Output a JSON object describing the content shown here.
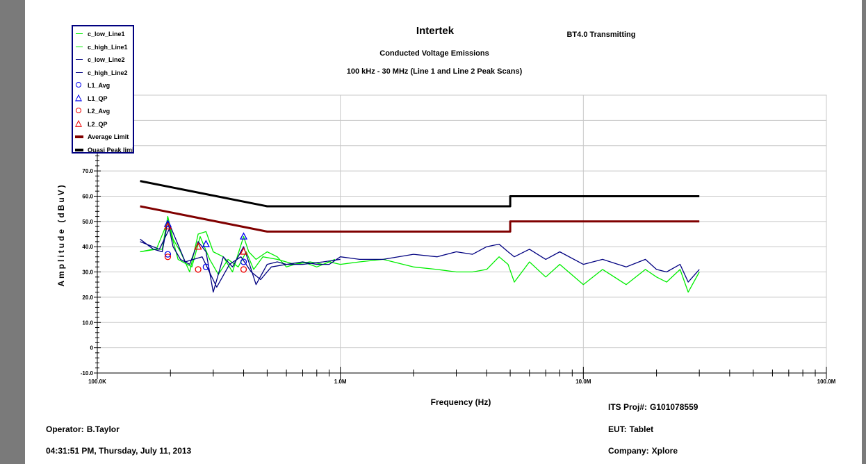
{
  "chart_data": {
    "type": "line",
    "title": "Intertek",
    "subtitle": "Conducted Voltage Emissions",
    "subtitle2": "100 kHz - 30 MHz (Line 1 and Line 2 Peak Scans)",
    "top_right_label": "BT4.0 Transmitting",
    "xlabel": "Frequency (Hz)",
    "ylabel": "Amplitude (dBuV)",
    "x_scale": "log",
    "xlim": [
      100000,
      100000000
    ],
    "ylim": [
      -10,
      100
    ],
    "x_tick_labels": [
      {
        "value": 100000,
        "label": "100.0K"
      },
      {
        "value": 1000000,
        "label": "1.0M"
      },
      {
        "value": 10000000,
        "label": "10.0M"
      },
      {
        "value": 100000000,
        "label": "100.0M"
      }
    ],
    "y_ticks": [
      -10,
      0,
      10,
      20,
      30,
      40,
      50,
      60,
      70
    ],
    "y_tick_labels": [
      "-10.0",
      "0",
      "10.0",
      "20.0",
      "30.0",
      "40.0",
      "50.0",
      "60.0",
      "70.0"
    ],
    "grid": true,
    "legend_position": "top-left",
    "colors": {
      "green": "#00ee00",
      "navy": "#000080",
      "red": "#ee0000",
      "maroon": "#800000",
      "black": "#000000",
      "blue": "#0000ee"
    },
    "series": [
      {
        "name": "c_low_Line1",
        "kind": "line",
        "color": "#00ee00",
        "x": [
          150000,
          170000,
          185000,
          195000,
          205000,
          220000,
          240000,
          260000,
          280000,
          300000,
          330000,
          360000,
          400000,
          420000,
          450000,
          500000,
          550000,
          600000,
          700000,
          800000,
          900000,
          1000000,
          1200000,
          1500000,
          2000000,
          2500000,
          3000000,
          3500000,
          4000000,
          4500000,
          4900000,
          5200000,
          6000000,
          7000000,
          8000000,
          10000000,
          12000000,
          15000000,
          18000000,
          20000000,
          22000000,
          25000000,
          27000000,
          30000000
        ],
        "y": [
          38,
          39,
          39,
          52,
          43,
          38,
          30,
          45,
          46,
          38,
          36,
          30,
          44,
          38,
          35,
          38,
          36,
          32,
          34,
          32,
          34,
          33,
          34,
          35,
          32,
          31,
          30,
          30,
          31,
          36,
          33,
          26,
          34,
          28,
          33,
          25,
          31,
          25,
          31,
          28,
          26,
          31,
          22,
          30
        ]
      },
      {
        "name": "c_high_Line1",
        "kind": "line",
        "color": "#00ee00",
        "x": [
          150000,
          175000,
          195000,
          215000,
          245000,
          265000,
          290000,
          315000,
          345000,
          380000,
          410000,
          440000,
          480000,
          550000,
          650000,
          750000,
          850000,
          950000
        ],
        "y": [
          38,
          39,
          50,
          35,
          32,
          44,
          35,
          29,
          35,
          32,
          38,
          31,
          36,
          35,
          33,
          34,
          33,
          35
        ]
      },
      {
        "name": "c_low_Line2",
        "kind": "line",
        "color": "#000080",
        "x": [
          150000,
          170000,
          185000,
          195000,
          205000,
          220000,
          240000,
          260000,
          280000,
          300000,
          330000,
          360000,
          400000,
          420000,
          450000,
          500000,
          550000,
          600000,
          700000,
          800000,
          900000,
          1000000,
          1200000,
          1500000,
          2000000,
          2500000,
          3000000,
          3500000,
          4000000,
          4500000,
          4900000,
          5200000,
          6000000,
          7000000,
          8000000,
          10000000,
          12000000,
          15000000,
          18000000,
          20000000,
          22000000,
          25000000,
          27000000,
          30000000
        ],
        "y": [
          43,
          39,
          38,
          50,
          40,
          35,
          33,
          42,
          38,
          22,
          36,
          32,
          40,
          34,
          25,
          33,
          34,
          33,
          34,
          33,
          33,
          36,
          35,
          35,
          37,
          36,
          38,
          37,
          40,
          41,
          38,
          36,
          39,
          35,
          38,
          33,
          35,
          32,
          35,
          31,
          30,
          33,
          26,
          31
        ]
      },
      {
        "name": "c_high_Line2",
        "kind": "line",
        "color": "#000080",
        "x": [
          150000,
          180000,
          200000,
          230000,
          270000,
          310000,
          350000,
          390000,
          430000,
          470000,
          520000,
          600000,
          700000,
          850000,
          1000000
        ],
        "y": [
          42,
          39,
          48,
          34,
          36,
          24,
          33,
          36,
          30,
          27,
          32,
          33,
          33,
          34,
          35
        ]
      },
      {
        "name": "L1_Avg",
        "kind": "circle",
        "color": "#0000ee",
        "x": [
          195000,
          280000,
          400000
        ],
        "y": [
          37,
          32,
          34
        ]
      },
      {
        "name": "L1_QP",
        "kind": "triangle",
        "color": "#0000ee",
        "x": [
          195000,
          280000,
          400000
        ],
        "y": [
          49,
          41,
          44
        ]
      },
      {
        "name": "L2_Avg",
        "kind": "circle",
        "color": "#ee0000",
        "x": [
          195000,
          260000,
          400000
        ],
        "y": [
          36,
          31,
          31
        ]
      },
      {
        "name": "L2_QP",
        "kind": "triangle",
        "color": "#ee0000",
        "x": [
          195000,
          260000,
          400000
        ],
        "y": [
          48,
          40,
          38
        ]
      },
      {
        "name": "Average Limit",
        "kind": "thick",
        "color": "#800000",
        "x": [
          150000,
          500000,
          5000000,
          5000000,
          30000000
        ],
        "y": [
          56,
          46,
          46,
          50,
          50
        ]
      },
      {
        "name": "Quasi Peak limit",
        "kind": "thick",
        "color": "#000000",
        "x": [
          150000,
          500000,
          5000000,
          5000000,
          30000000
        ],
        "y": [
          66,
          56,
          56,
          60,
          60
        ]
      }
    ]
  },
  "footer": {
    "project_label": "ITS Proj#:",
    "project_value": "G101078559",
    "operator_label": "Operator:",
    "operator_value": "B.Taylor",
    "eut_label": "EUT:",
    "eut_value": "Tablet",
    "timestamp": "04:31:51 PM, Thursday, July 11, 2013",
    "company_label": "Company:",
    "company_value": "Xplore"
  }
}
